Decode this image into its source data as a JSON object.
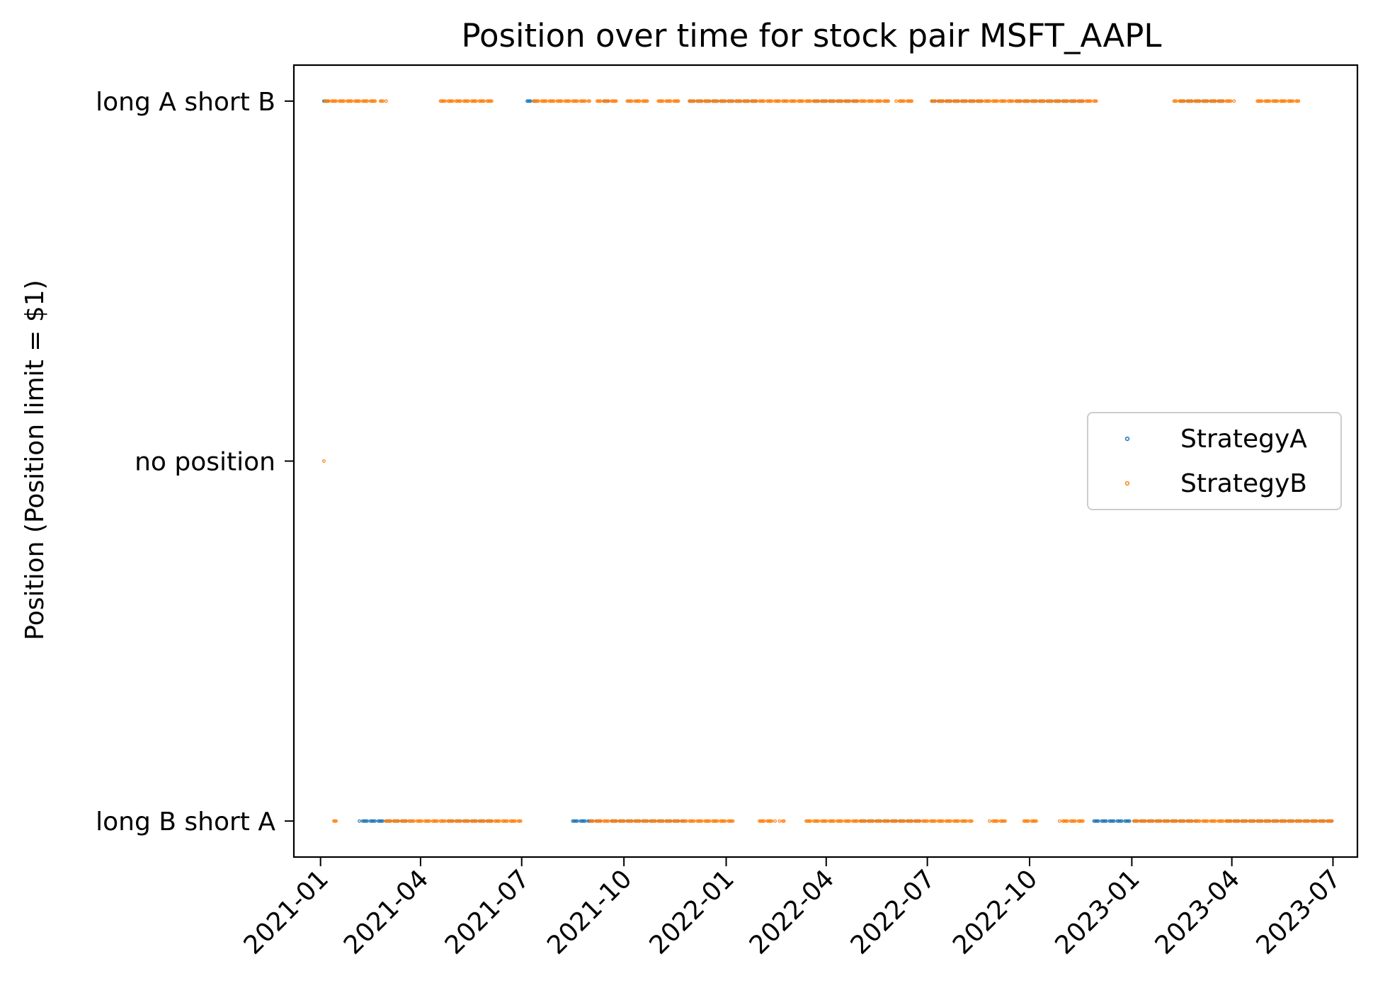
{
  "chart_data": {
    "type": "scatter",
    "title": "Position over time for stock pair MSFT_AAPL",
    "xlabel": "",
    "ylabel": "Position (Position limit = $1)",
    "x_type": "date",
    "xlim": [
      "2020-12-08",
      "2023-07-23"
    ],
    "ylim": [
      -1.1,
      1.1
    ],
    "x_ticks": [
      "2021-01",
      "2021-04",
      "2021-07",
      "2021-10",
      "2022-01",
      "2022-04",
      "2022-07",
      "2022-10",
      "2023-01",
      "2023-04",
      "2023-07"
    ],
    "y_ticks": [
      {
        "value": 1,
        "label": "long A short B"
      },
      {
        "value": 0,
        "label": "no position"
      },
      {
        "value": -1,
        "label": "long B short A"
      }
    ],
    "legend_position": "center-right",
    "grid": false,
    "series": [
      {
        "name": "StrategyA",
        "color": "#1f77b4",
        "segments": [
          {
            "y": 1,
            "start": "2021-01-04",
            "end": "2021-01-08"
          },
          {
            "y": -1,
            "start": "2021-02-05",
            "end": "2021-03-22"
          },
          {
            "y": -1,
            "start": "2021-04-26",
            "end": "2021-06-04"
          },
          {
            "y": 1,
            "start": "2021-07-06",
            "end": "2021-07-14"
          },
          {
            "y": -1,
            "start": "2021-08-16",
            "end": "2021-09-10"
          },
          {
            "y": 1,
            "start": "2021-09-13",
            "end": "2021-09-17"
          },
          {
            "y": -1,
            "start": "2021-09-20",
            "end": "2021-11-24"
          },
          {
            "y": 1,
            "start": "2021-11-29",
            "end": "2022-01-28"
          },
          {
            "y": 1,
            "start": "2022-03-21",
            "end": "2022-04-29"
          },
          {
            "y": -1,
            "start": "2022-05-02",
            "end": "2022-06-24"
          },
          {
            "y": 1,
            "start": "2022-07-05",
            "end": "2022-08-19"
          },
          {
            "y": 1,
            "start": "2022-09-19",
            "end": "2022-11-18"
          },
          {
            "y": -1,
            "start": "2022-11-28",
            "end": "2022-12-30"
          },
          {
            "y": -1,
            "start": "2023-01-03",
            "end": "2023-02-28"
          },
          {
            "y": 1,
            "start": "2023-02-14",
            "end": "2023-03-24"
          },
          {
            "y": -1,
            "start": "2023-03-27",
            "end": "2023-06-30"
          }
        ]
      },
      {
        "name": "StrategyB",
        "color": "#ff7f0e",
        "points": [
          {
            "x": "2021-01-04",
            "y": 0
          }
        ],
        "segments": [
          {
            "y": 1,
            "start": "2021-01-05",
            "end": "2021-02-19"
          },
          {
            "y": 1,
            "start": "2021-02-24",
            "end": "2021-03-01"
          },
          {
            "y": -1,
            "start": "2021-01-13",
            "end": "2021-01-15"
          },
          {
            "y": -1,
            "start": "2021-03-01",
            "end": "2021-06-30"
          },
          {
            "y": 1,
            "start": "2021-04-19",
            "end": "2021-06-04"
          },
          {
            "y": 1,
            "start": "2021-07-12",
            "end": "2021-08-31"
          },
          {
            "y": 1,
            "start": "2021-09-07",
            "end": "2021-09-24"
          },
          {
            "y": 1,
            "start": "2021-10-04",
            "end": "2021-10-22"
          },
          {
            "y": 1,
            "start": "2021-11-01",
            "end": "2021-11-19"
          },
          {
            "y": -1,
            "start": "2021-09-01",
            "end": "2021-12-31"
          },
          {
            "y": -1,
            "start": "2022-01-03",
            "end": "2022-01-07"
          },
          {
            "y": -1,
            "start": "2022-01-31",
            "end": "2022-02-14"
          },
          {
            "y": -1,
            "start": "2022-02-18",
            "end": "2022-02-22"
          },
          {
            "y": 1,
            "start": "2021-11-29",
            "end": "2022-05-27"
          },
          {
            "y": -1,
            "start": "2022-03-14",
            "end": "2022-08-10"
          },
          {
            "y": 1,
            "start": "2022-06-03",
            "end": "2022-06-17"
          },
          {
            "y": 1,
            "start": "2022-07-05",
            "end": "2022-11-30"
          },
          {
            "y": -1,
            "start": "2022-08-26",
            "end": "2022-09-09"
          },
          {
            "y": -1,
            "start": "2022-09-26",
            "end": "2022-10-07"
          },
          {
            "y": -1,
            "start": "2022-10-28",
            "end": "2022-11-18"
          },
          {
            "y": 1,
            "start": "2023-02-08",
            "end": "2023-04-03"
          },
          {
            "y": 1,
            "start": "2023-04-24",
            "end": "2023-05-31"
          },
          {
            "y": -1,
            "start": "2023-01-03",
            "end": "2023-06-30"
          }
        ]
      }
    ]
  }
}
